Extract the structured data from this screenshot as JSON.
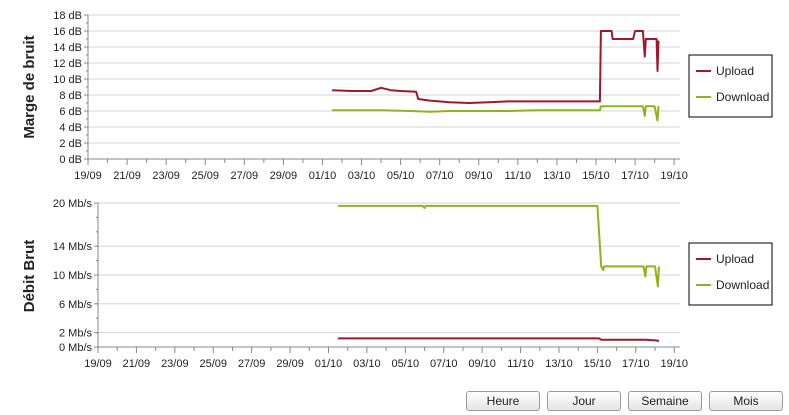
{
  "chart_data": [
    {
      "type": "line",
      "ylabel": "Marge de bruit",
      "unit": "dB",
      "ylim": [
        0,
        18
      ],
      "yticks": [
        "0 dB",
        "2 dB",
        "4 dB",
        "6 dB",
        "8 dB",
        "10 dB",
        "12 dB",
        "14 dB",
        "16 dB",
        "18 dB"
      ],
      "ytick_values": [
        0,
        2,
        4,
        6,
        8,
        10,
        12,
        14,
        16,
        18
      ],
      "xticks": [
        "19/09",
        "21/09",
        "23/09",
        "25/09",
        "27/09",
        "29/09",
        "01/10",
        "03/10",
        "05/10",
        "07/10",
        "09/10",
        "11/10",
        "13/10",
        "15/10",
        "17/10",
        "19/10"
      ],
      "x_range_days": [
        0,
        30.3
      ],
      "legend": "right",
      "grid": true,
      "series": [
        {
          "name": "Upload",
          "color": "#a0182c",
          "points": [
            [
              12.5,
              8.6
            ],
            [
              13.5,
              8.5
            ],
            [
              14.5,
              8.5
            ],
            [
              15,
              8.9
            ],
            [
              15.5,
              8.6
            ],
            [
              16,
              8.5
            ],
            [
              16.8,
              8.4
            ],
            [
              16.9,
              7.5
            ],
            [
              17.5,
              7.3
            ],
            [
              18.5,
              7.1
            ],
            [
              19.5,
              7.0
            ],
            [
              20.5,
              7.1
            ],
            [
              21.5,
              7.2
            ],
            [
              22.5,
              7.2
            ],
            [
              23.5,
              7.2
            ],
            [
              24.5,
              7.2
            ],
            [
              25.5,
              7.2
            ],
            [
              26.2,
              7.2
            ],
            [
              26.25,
              16.0
            ],
            [
              26.8,
              16.0
            ],
            [
              26.85,
              15.0
            ],
            [
              27.5,
              15.0
            ],
            [
              27.9,
              15.0
            ],
            [
              28.0,
              16.0
            ],
            [
              28.4,
              16.0
            ],
            [
              28.5,
              12.8
            ],
            [
              28.55,
              15.0
            ],
            [
              29.0,
              15.0
            ],
            [
              29.1,
              15.0
            ],
            [
              29.15,
              11.0
            ],
            [
              29.2,
              14.8
            ]
          ]
        },
        {
          "name": "Download",
          "color": "#8fb21f",
          "points": [
            [
              12.5,
              6.1
            ],
            [
              14,
              6.1
            ],
            [
              15,
              6.1
            ],
            [
              16.5,
              6.0
            ],
            [
              17.5,
              5.9
            ],
            [
              18.5,
              6.0
            ],
            [
              20,
              6.0
            ],
            [
              21.5,
              6.0
            ],
            [
              23,
              6.1
            ],
            [
              24.5,
              6.1
            ],
            [
              26.0,
              6.1
            ],
            [
              26.2,
              6.1
            ],
            [
              26.25,
              6.6
            ],
            [
              27,
              6.6
            ],
            [
              28,
              6.6
            ],
            [
              28.4,
              6.6
            ],
            [
              28.5,
              5.4
            ],
            [
              28.55,
              6.6
            ],
            [
              29.0,
              6.6
            ],
            [
              29.15,
              4.8
            ],
            [
              29.2,
              6.6
            ]
          ]
        }
      ]
    },
    {
      "type": "line",
      "ylabel": "Débit Brut",
      "unit": "Mb/s",
      "ylim": [
        0,
        20
      ],
      "yticks": [
        "0 Mb/s",
        "2 Mb/s",
        "6 Mb/s",
        "10 Mb/s",
        "14 Mb/s",
        "20 Mb/s"
      ],
      "ytick_values": [
        0,
        2,
        6,
        10,
        14,
        20
      ],
      "xticks": [
        "19/09",
        "21/09",
        "23/09",
        "25/09",
        "27/09",
        "29/09",
        "01/10",
        "03/10",
        "05/10",
        "07/10",
        "09/10",
        "11/10",
        "13/10",
        "15/10",
        "17/10",
        "19/10"
      ],
      "x_range_days": [
        0,
        30.3
      ],
      "legend": "right",
      "grid": true,
      "series": [
        {
          "name": "Upload",
          "color": "#a0182c",
          "points": [
            [
              12.5,
              1.2
            ],
            [
              20,
              1.2
            ],
            [
              26.1,
              1.2
            ],
            [
              26.2,
              1.0
            ],
            [
              28.5,
              1.0
            ],
            [
              29.1,
              0.9
            ],
            [
              29.2,
              0.8
            ]
          ]
        },
        {
          "name": "Download",
          "color": "#8fb21f",
          "points": [
            [
              12.5,
              19.6
            ],
            [
              16.9,
              19.6
            ],
            [
              17.0,
              19.3
            ],
            [
              17.05,
              19.6
            ],
            [
              26.0,
              19.6
            ],
            [
              26.2,
              11.2
            ],
            [
              26.3,
              10.7
            ],
            [
              26.35,
              11.2
            ],
            [
              28.4,
              11.2
            ],
            [
              28.5,
              9.8
            ],
            [
              28.55,
              11.2
            ],
            [
              29.0,
              11.2
            ],
            [
              29.15,
              8.4
            ],
            [
              29.2,
              11.2
            ]
          ]
        }
      ]
    }
  ],
  "buttons": [
    "Heure",
    "Jour",
    "Semaine",
    "Mois"
  ]
}
